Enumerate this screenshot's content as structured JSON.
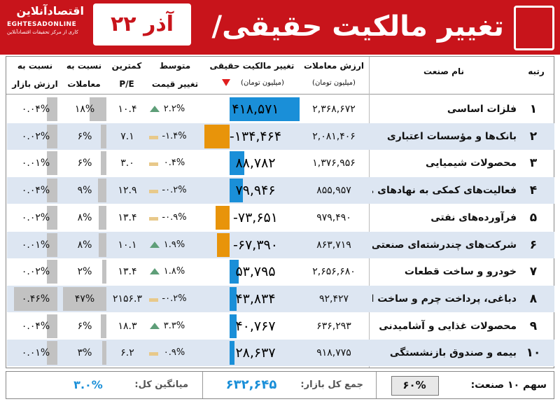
{
  "header": {
    "title": "تغییر مالکیت حقیقی/حقوقی",
    "date": "۲۲ آذر",
    "logo_main": "اقتصادآنلاین",
    "logo_site": "EGHTESADONLINE",
    "logo_tagline": "کاری از مرکز تحقیقات اقتصادآنلاین"
  },
  "columns": {
    "rank": "رتبه",
    "industry": "نام صنعت",
    "value": [
      "ارزش معاملات",
      "(میلیون تومان)"
    ],
    "owner_change": [
      "تغییر مالکیت حقیقی",
      "(میلیون تومان)"
    ],
    "avg_price": [
      "متوسط",
      "تغییر قیمت"
    ],
    "pe": [
      "کمترین",
      "P/E"
    ],
    "share_trades": [
      "نسبت به",
      "معاملات"
    ],
    "share_market": [
      "نسبت به",
      "ارزش بازار"
    ]
  },
  "sort_icon": "sort-down-icon",
  "chart_data": {
    "type": "table",
    "rows": [
      {
        "rank": "۱",
        "industry": "فلزات اساسی",
        "value": "۲,۳۶۸,۶۷۲",
        "owner_change": "۴۱۸,۵۷۱",
        "owner_change_num": 418571,
        "avg_change": "۲.۲%",
        "trend": "up",
        "pe": "۱۰.۴",
        "share_trades": "۱۸%",
        "share_trades_num": 18,
        "share_market": "۰.۰۴%",
        "share_market_num": 0.04
      },
      {
        "rank": "۲",
        "industry": "بانک‌ها و مؤسسات اعتباری",
        "value": "۲,۰۸۱,۴۰۶",
        "owner_change": "-۱۳۴,۴۶۴",
        "owner_change_num": -134464,
        "avg_change": "-۱.۴%",
        "trend": "flat",
        "pe": "۷.۱",
        "share_trades": "۶%",
        "share_trades_num": 6,
        "share_market": "۰.۰۲%",
        "share_market_num": 0.02
      },
      {
        "rank": "۳",
        "industry": "محصولات شیمیایی",
        "value": "۱,۳۷۶,۹۵۶",
        "owner_change": "۸۸,۷۸۲",
        "owner_change_num": 88782,
        "avg_change": "۰.۴%",
        "trend": "flat",
        "pe": "۳.۰",
        "share_trades": "۶%",
        "share_trades_num": 6,
        "share_market": "۰.۰۱%",
        "share_market_num": 0.01
      },
      {
        "rank": "۴",
        "industry": "فعالیت‌های کمکی به نهادهای مالی",
        "value": "۸۵۵,۹۵۷",
        "owner_change": "۷۹,۹۴۶",
        "owner_change_num": 79946,
        "avg_change": "-۰.۲%",
        "trend": "flat",
        "pe": "۱۲.۹",
        "share_trades": "۹%",
        "share_trades_num": 9,
        "share_market": "۰.۰۴%",
        "share_market_num": 0.04
      },
      {
        "rank": "۵",
        "industry": "فرآورده‌های نفتی",
        "value": "۹۷۹,۴۹۰",
        "owner_change": "-۷۳,۶۵۱",
        "owner_change_num": -73651,
        "avg_change": "-۰.۹%",
        "trend": "flat",
        "pe": "۱۳.۴",
        "share_trades": "۸%",
        "share_trades_num": 8,
        "share_market": "۰.۰۲%",
        "share_market_num": 0.02
      },
      {
        "rank": "۶",
        "industry": "شرکت‌های چندرشته‌ای صنعتی",
        "value": "۸۶۳,۷۱۹",
        "owner_change": "-۶۷,۳۹۰",
        "owner_change_num": -67390,
        "avg_change": "۱.۹%",
        "trend": "up",
        "pe": "۱۰.۱",
        "share_trades": "۸%",
        "share_trades_num": 8,
        "share_market": "۰.۰۱%",
        "share_market_num": 0.01
      },
      {
        "rank": "۷",
        "industry": "خودرو و ساخت قطعات",
        "value": "۲,۶۵۶,۶۸۰",
        "owner_change": "۵۳,۷۹۵",
        "owner_change_num": 53795,
        "avg_change": "۱.۸%",
        "trend": "up",
        "pe": "۱۳.۴",
        "share_trades": "۲%",
        "share_trades_num": 2,
        "share_market": "۰.۰۲%",
        "share_market_num": 0.02
      },
      {
        "rank": "۸",
        "industry": "دباغی، پرداخت چرم و ساخت انواع پاپوش",
        "value": "۹۲,۴۲۷",
        "owner_change": "۴۳,۸۳۴",
        "owner_change_num": 43834,
        "avg_change": "-۰.۲%",
        "trend": "flat",
        "pe": "۲۱۵۶.۳",
        "share_trades": "۴۷%",
        "share_trades_num": 47,
        "share_market": "۰.۴۶%",
        "share_market_num": 0.46
      },
      {
        "rank": "۹",
        "industry": "محصولات غذایی و آشامیدنی",
        "value": "۶۳۶,۲۹۳",
        "owner_change": "۴۰,۷۶۷",
        "owner_change_num": 40767,
        "avg_change": "۳.۳%",
        "trend": "up",
        "pe": "۱۸.۳",
        "share_trades": "۶%",
        "share_trades_num": 6,
        "share_market": "۰.۰۴%",
        "share_market_num": 0.04
      },
      {
        "rank": "۱۰",
        "industry": "بیمه و صندوق بازنشستگی",
        "value": "۹۱۸,۷۷۵",
        "owner_change": "۲۸,۶۳۷",
        "owner_change_num": 28637,
        "avg_change": "۰.۹%",
        "trend": "flat",
        "pe": "۶.۲",
        "share_trades": "۳%",
        "share_trades_num": 3,
        "share_market": "۰.۰۱%",
        "share_market_num": 0.01
      }
    ]
  },
  "footer": {
    "top10_label": "سهم ۱۰ صنعت:",
    "top10_value": "۶۰%",
    "total_label": "جمع کل بازار:",
    "total_value": "۶۳۲,۶۴۵",
    "avg_label": "میانگین کل:",
    "avg_value": "۳.۰%"
  },
  "colors": {
    "brand_red": "#c8141b",
    "positive_bar": "#1a8fd8",
    "negative_bar": "#e8940a",
    "up_triangle": "#5e9e78",
    "flat_dash": "#e8c98a",
    "share_box": "#c2c2c2",
    "row_alt": "#dde6f2"
  }
}
